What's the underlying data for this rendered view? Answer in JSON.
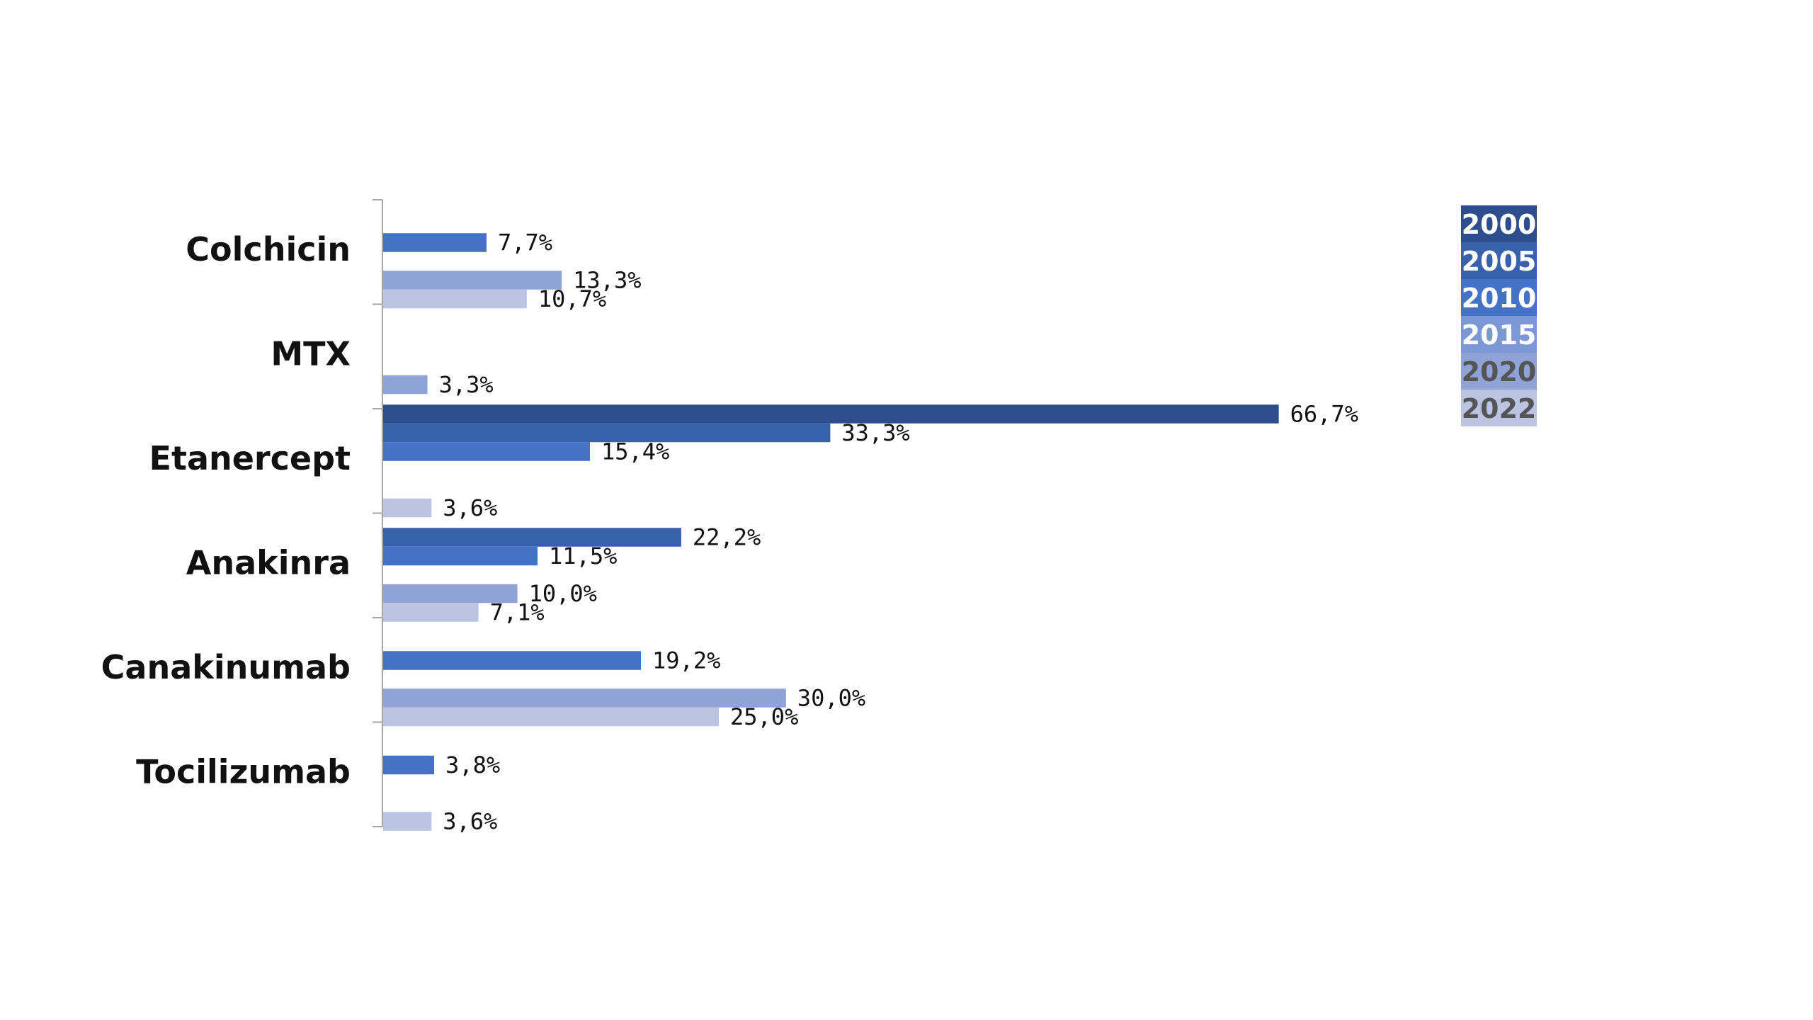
{
  "chart_data": {
    "type": "bar",
    "orientation": "horizontal",
    "title": "",
    "xlabel": "",
    "ylabel": "",
    "xlim": [
      0,
      80
    ],
    "grid": false,
    "legend_position": "right",
    "categories": [
      "Colchicin",
      "MTX",
      "Etanercept",
      "Anakinra",
      "Canakinumab",
      "Tocilizumab"
    ],
    "series": [
      {
        "name": "2000",
        "color": "#2e4d8d",
        "text_color": "#ffffff",
        "values": [
          null,
          null,
          66.7,
          null,
          null,
          null
        ],
        "labels": [
          "",
          "",
          "66,7%",
          "",
          "",
          ""
        ]
      },
      {
        "name": "2005",
        "color": "#3861ab",
        "text_color": "#ffffff",
        "values": [
          null,
          null,
          33.3,
          22.2,
          null,
          null
        ],
        "labels": [
          "",
          "",
          "33,3%",
          "22,2%",
          "",
          ""
        ]
      },
      {
        "name": "2010",
        "color": "#4472c4",
        "text_color": "#ffffff",
        "values": [
          7.7,
          null,
          15.4,
          11.5,
          19.2,
          3.8
        ],
        "labels": [
          "7,7%",
          "",
          "15,4%",
          "11,5%",
          "19,2%",
          "3,8%"
        ]
      },
      {
        "name": "2015",
        "color": "#7b97d6",
        "text_color": "#ffffff",
        "values": [
          null,
          null,
          null,
          null,
          null,
          null
        ],
        "labels": [
          "",
          "",
          "",
          "",
          "",
          ""
        ]
      },
      {
        "name": "2020",
        "color": "#8fa3d6",
        "text_color": "#555555",
        "values": [
          13.3,
          3.3,
          null,
          10.0,
          30.0,
          null
        ],
        "labels": [
          "13,3%",
          "3,3%",
          "",
          "10,0%",
          "30,0%",
          ""
        ]
      },
      {
        "name": "2022",
        "color": "#bcc4e4",
        "text_color": "#555555",
        "values": [
          10.7,
          null,
          3.6,
          7.1,
          25.0,
          3.6
        ],
        "labels": [
          "10,7%",
          "",
          "3,6%",
          "7,1%",
          "25,0%",
          "3,6%"
        ]
      }
    ]
  }
}
